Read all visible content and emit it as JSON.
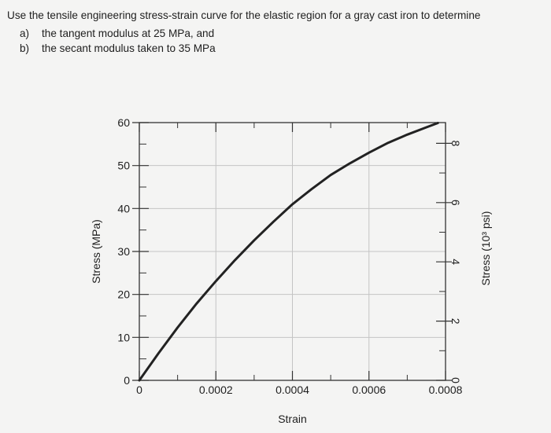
{
  "question": {
    "prompt": "Use the tensile engineering stress-strain curve for the elastic region for a gray cast iron to determine",
    "parts": [
      {
        "tag": "a)",
        "text": "the tangent modulus at 25 MPa, and"
      },
      {
        "tag": "b)",
        "text": "the secant modulus taken to 35 MPa"
      }
    ]
  },
  "chart_data": {
    "type": "line",
    "xlabel": "Strain",
    "ylabel": "Stress (MPa)",
    "ylabel_right": "Stress (10³ psi)",
    "xlim": [
      0,
      0.0008
    ],
    "ylim": [
      0,
      60
    ],
    "ylim_right": [
      0,
      8.7
    ],
    "x_ticks": [
      "0",
      "0.0002",
      "0.0004",
      "0.0006",
      "0.0008"
    ],
    "y_ticks": [
      "0",
      "10",
      "20",
      "30",
      "40",
      "50",
      "60"
    ],
    "y_ticks_right": [
      "0",
      "2",
      "4",
      "6",
      "8"
    ],
    "grid": true,
    "series": [
      {
        "x": [
          0,
          5e-05,
          0.0001,
          0.00015,
          0.0002,
          0.00025,
          0.0003,
          0.00035,
          0.0004,
          0.00045,
          0.0005,
          0.00055,
          0.0006,
          0.00065,
          0.0007,
          0.00075,
          0.00078
        ],
        "y": [
          0,
          6.3,
          12.3,
          17.9,
          23.1,
          28.0,
          32.6,
          36.9,
          41.0,
          44.5,
          47.8,
          50.5,
          53.0,
          55.3,
          57.2,
          58.9,
          59.9
        ],
        "color": "#222222"
      }
    ]
  }
}
